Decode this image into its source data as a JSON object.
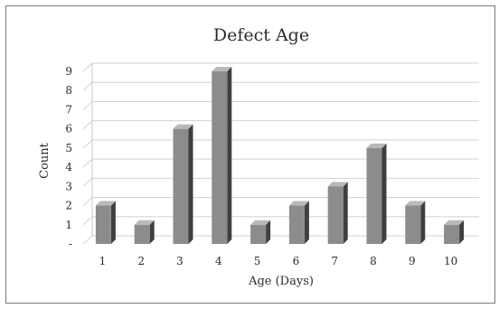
{
  "chart_data": {
    "type": "bar",
    "title": "Defect Age",
    "xlabel": "Age (Days)",
    "ylabel": "Count",
    "categories": [
      "1",
      "2",
      "3",
      "4",
      "5",
      "6",
      "7",
      "8",
      "9",
      "10"
    ],
    "values": [
      2,
      1,
      6,
      9,
      1,
      2,
      3,
      5,
      2,
      1
    ],
    "ylim": [
      0,
      9
    ],
    "y_ticks": [
      "-",
      "1",
      "2",
      "3",
      "4",
      "5",
      "6",
      "7",
      "8",
      "9"
    ],
    "grid": true,
    "style": "3d-column",
    "colors": {
      "bar_front": "#8c8c8c",
      "bar_side": "#3f3f3f",
      "bar_top": "#b9b9b9",
      "grid": "#d3d3d3"
    }
  }
}
